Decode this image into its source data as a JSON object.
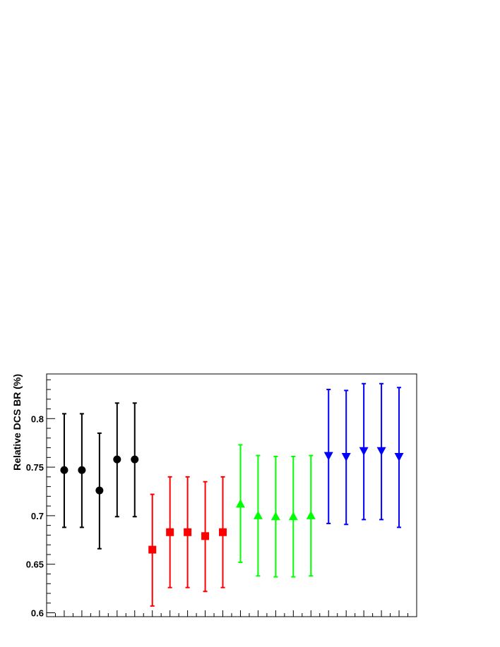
{
  "chart_data": {
    "type": "scatter",
    "title": "",
    "xlabel": "",
    "ylabel": "Relative DCS BR (%)",
    "ylim": [
      0.596,
      0.846
    ],
    "xlim": [
      0,
      21
    ],
    "grid": false,
    "yticks": [
      {
        "value": 0.6,
        "label": "0.6"
      },
      {
        "value": 0.65,
        "label": "0.65"
      },
      {
        "value": 0.7,
        "label": "0.7"
      },
      {
        "value": 0.75,
        "label": "0.75"
      },
      {
        "value": 0.8,
        "label": "0.8"
      }
    ],
    "series": [
      {
        "color": "#000000",
        "marker": "circle",
        "x": [
          1,
          2,
          3,
          4,
          5
        ],
        "y": [
          0.747,
          0.747,
          0.726,
          0.758,
          0.758
        ],
        "yerr_low": [
          0.688,
          0.688,
          0.666,
          0.699,
          0.699
        ],
        "yerr_high": [
          0.805,
          0.805,
          0.785,
          0.816,
          0.816
        ]
      },
      {
        "color": "#ff0000",
        "marker": "square",
        "x": [
          6,
          7,
          8,
          9,
          10
        ],
        "y": [
          0.665,
          0.683,
          0.683,
          0.679,
          0.683
        ],
        "yerr_low": [
          0.607,
          0.626,
          0.626,
          0.622,
          0.626
        ],
        "yerr_high": [
          0.722,
          0.74,
          0.74,
          0.735,
          0.74
        ]
      },
      {
        "color": "#00ff00",
        "marker": "triangle-up",
        "x": [
          11,
          12,
          13,
          14,
          15
        ],
        "y": [
          0.712,
          0.7,
          0.699,
          0.699,
          0.7
        ],
        "yerr_low": [
          0.652,
          0.638,
          0.637,
          0.637,
          0.638
        ],
        "yerr_high": [
          0.773,
          0.762,
          0.761,
          0.761,
          0.762
        ]
      },
      {
        "color": "#0000ff",
        "marker": "triangle-down",
        "x": [
          16,
          17,
          18,
          19,
          20
        ],
        "y": [
          0.762,
          0.761,
          0.767,
          0.767,
          0.761
        ],
        "yerr_low": [
          0.692,
          0.691,
          0.696,
          0.696,
          0.688
        ],
        "yerr_high": [
          0.83,
          0.829,
          0.836,
          0.836,
          0.832
        ]
      }
    ]
  }
}
